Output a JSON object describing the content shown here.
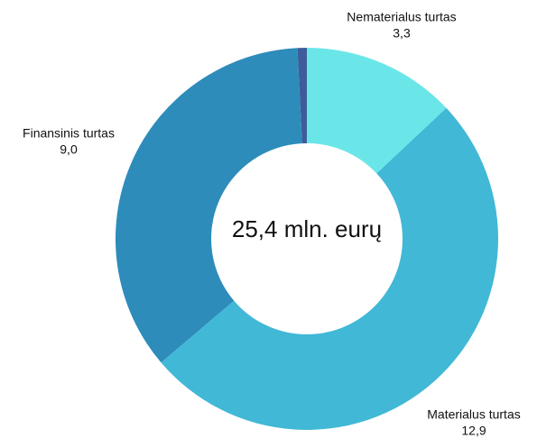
{
  "chart_data": {
    "type": "donut",
    "categories": [
      "Nematerialus turtas",
      "Materialus turtas",
      "Finansinis turtas",
      null
    ],
    "values": [
      3.3,
      12.9,
      9.0,
      0.2
    ],
    "value_labels": [
      "3,3",
      "12,9",
      "9,0",
      null
    ],
    "colors": [
      "#6ae6e8",
      "#41b8d6",
      "#2d8cba",
      "#3e5c9a"
    ],
    "center_label": "25,4 mln. eurų"
  }
}
